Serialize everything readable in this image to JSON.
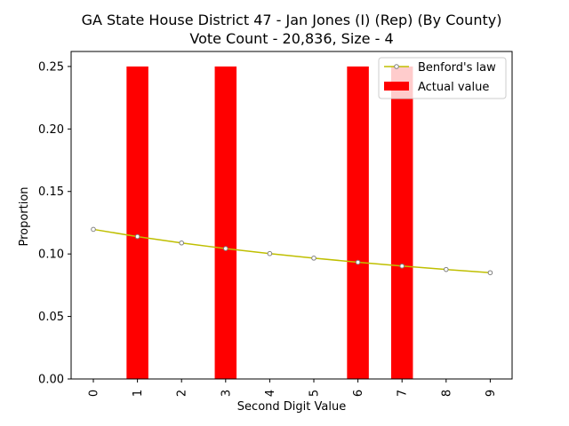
{
  "chart_data": {
    "type": "bar",
    "title": "GA State House District 47 - Jan Jones (I) (Rep) (By County)",
    "subtitle": "Vote Count - 20,836, Size - 4",
    "xlabel": "Second Digit Value",
    "ylabel": "Proportion",
    "categories": [
      "0",
      "1",
      "2",
      "3",
      "4",
      "5",
      "6",
      "7",
      "8",
      "9"
    ],
    "ylim": [
      0,
      0.262
    ],
    "yticks": [
      "0.00",
      "0.05",
      "0.10",
      "0.15",
      "0.20",
      "0.25"
    ],
    "grid": false,
    "legend_position": "top-right",
    "series": [
      {
        "name": "Actual value",
        "type": "bar",
        "color": "#ff0000",
        "values": [
          0,
          0.25,
          0,
          0.25,
          0,
          0,
          0.25,
          0.25,
          0,
          0
        ]
      },
      {
        "name": "Benford's law",
        "type": "line",
        "color": "#bfbf00",
        "marker_edge": "#7f7f7f",
        "values": [
          0.11968,
          0.11389,
          0.10882,
          0.10433,
          0.10031,
          0.09668,
          0.09337,
          0.09035,
          0.08757,
          0.085
        ]
      }
    ],
    "legend": [
      "Benford's law",
      "Actual value"
    ]
  }
}
